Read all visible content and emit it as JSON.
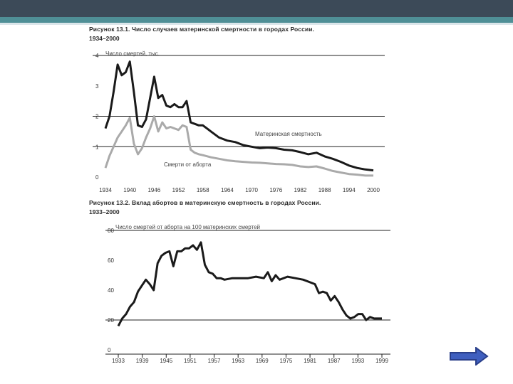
{
  "slide": {
    "colors": {
      "band": "#3c4a58",
      "accent": "#4f8f96",
      "arrow": "#3f5fbf"
    },
    "nav_arrow_icon": "right-arrow-icon"
  },
  "chart_data": [
    {
      "type": "line",
      "title": "Рисунок 13.1. Число случаев материнской смертности в городах России.",
      "subtitle": "1934–2000",
      "ylabel": "Число смертей, тыс.",
      "xlabel": "",
      "ylim": [
        0,
        4
      ],
      "yticks": [
        "0",
        "1",
        "2",
        "3",
        "4"
      ],
      "xticks": [
        "1934",
        "1940",
        "1946",
        "1952",
        "1958",
        "1964",
        "1970",
        "1976",
        "1982",
        "1988",
        "1994",
        "2000"
      ],
      "xlim": [
        1934,
        2000
      ],
      "grid": "horizontal at 1, 2, 4",
      "series": [
        {
          "name": "Материнская смертность",
          "color": "#1a1a1a",
          "x": [
            1934,
            1935,
            1936,
            1937,
            1938,
            1939,
            1940,
            1941,
            1942,
            1943,
            1944,
            1945,
            1946,
            1947,
            1948,
            1949,
            1950,
            1951,
            1952,
            1953,
            1954,
            1955,
            1956,
            1957,
            1958,
            1959,
            1960,
            1962,
            1964,
            1966,
            1968,
            1970,
            1972,
            1974,
            1976,
            1978,
            1980,
            1982,
            1984,
            1986,
            1988,
            1990,
            1992,
            1994,
            1996,
            1998,
            2000
          ],
          "y": [
            1.6,
            2.0,
            2.8,
            3.7,
            3.35,
            3.45,
            3.8,
            2.8,
            1.7,
            1.65,
            1.9,
            2.6,
            3.3,
            2.6,
            2.7,
            2.35,
            2.3,
            2.4,
            2.3,
            2.3,
            2.5,
            1.8,
            1.75,
            1.7,
            1.7,
            1.6,
            1.5,
            1.3,
            1.2,
            1.15,
            1.05,
            1.0,
            0.95,
            0.97,
            0.95,
            0.9,
            0.88,
            0.82,
            0.75,
            0.8,
            0.68,
            0.6,
            0.5,
            0.38,
            0.3,
            0.25,
            0.22
          ]
        },
        {
          "name": "Смерти от аборта",
          "color": "#aaaaaa",
          "x": [
            1934,
            1935,
            1936,
            1937,
            1938,
            1939,
            1940,
            1941,
            1942,
            1943,
            1944,
            1945,
            1946,
            1947,
            1948,
            1949,
            1950,
            1951,
            1952,
            1953,
            1954,
            1955,
            1956,
            1957,
            1958,
            1960,
            1962,
            1964,
            1966,
            1968,
            1970,
            1972,
            1974,
            1976,
            1978,
            1980,
            1982,
            1984,
            1986,
            1988,
            1990,
            1992,
            1994,
            1996,
            1998,
            2000
          ],
          "y": [
            0.3,
            0.7,
            1.0,
            1.3,
            1.5,
            1.7,
            1.95,
            1.1,
            0.75,
            0.95,
            1.3,
            1.6,
            2.0,
            1.5,
            1.8,
            1.6,
            1.65,
            1.6,
            1.55,
            1.7,
            1.65,
            0.9,
            0.8,
            0.75,
            0.72,
            0.65,
            0.6,
            0.55,
            0.52,
            0.5,
            0.48,
            0.47,
            0.45,
            0.43,
            0.42,
            0.4,
            0.35,
            0.33,
            0.35,
            0.28,
            0.2,
            0.15,
            0.1,
            0.08,
            0.05,
            0.05
          ]
        }
      ]
    },
    {
      "type": "line",
      "title": "Рисунок 13.2. Вклад абортов в материнскую смертность в городах России.",
      "subtitle": "1933–2000",
      "ylabel": "Число смертей от аборта на 100 материнских смертей",
      "xlabel": "",
      "ylim": [
        0,
        80
      ],
      "yticks": [
        "0",
        "20",
        "40",
        "60",
        "80"
      ],
      "xticks": [
        "1933",
        "1939",
        "1945",
        "1951",
        "1957",
        "1963",
        "1969",
        "1975",
        "1981",
        "1987",
        "1993",
        "1999"
      ],
      "xlim": [
        1933,
        2000
      ],
      "grid": "horizontal at 20, 80",
      "series": [
        {
          "name": "",
          "color": "#1a1a1a",
          "x": [
            1933,
            1934,
            1935,
            1936,
            1937,
            1938,
            1939,
            1940,
            1941,
            1942,
            1943,
            1944,
            1945,
            1946,
            1947,
            1948,
            1949,
            1950,
            1951,
            1952,
            1953,
            1954,
            1955,
            1956,
            1957,
            1958,
            1959,
            1960,
            1962,
            1964,
            1966,
            1968,
            1970,
            1971,
            1972,
            1973,
            1974,
            1976,
            1978,
            1980,
            1982,
            1983,
            1984,
            1985,
            1986,
            1987,
            1988,
            1989,
            1990,
            1991,
            1992,
            1993,
            1994,
            1995,
            1996,
            1997,
            1998,
            1999,
            2000
          ],
          "y": [
            16,
            21,
            24,
            29,
            32,
            39,
            43,
            47,
            44,
            40,
            58,
            63,
            65,
            66,
            56,
            66,
            66,
            68,
            68,
            70,
            67,
            72,
            57,
            52,
            51,
            48,
            48,
            47,
            48,
            48,
            48,
            49,
            48,
            52,
            46,
            50,
            47,
            49,
            48,
            47,
            45,
            44,
            38,
            39,
            38,
            33,
            36,
            32,
            27,
            23,
            21,
            22,
            24,
            24,
            20,
            22,
            21,
            21,
            21
          ]
        }
      ]
    }
  ]
}
